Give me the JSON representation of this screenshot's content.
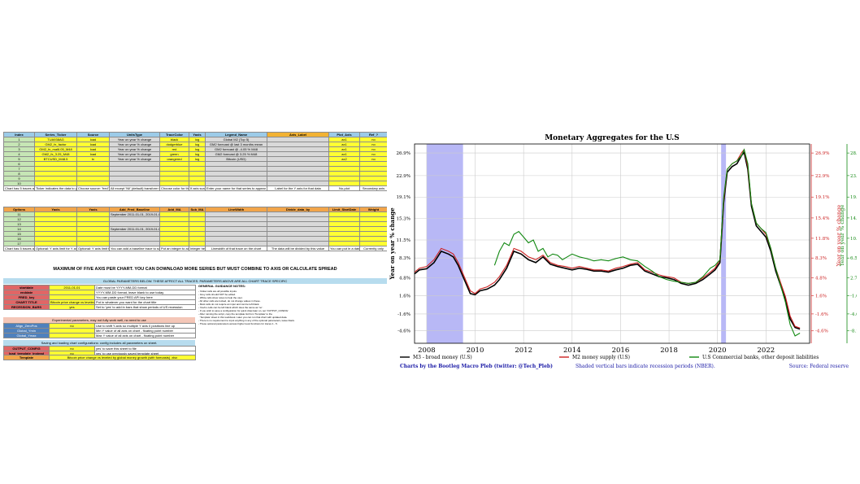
{
  "sheet": {
    "headers": [
      "Index",
      "Series_Ticker",
      "Source",
      "UnitsType",
      "TraceColor",
      "Yaxis",
      "Legend_Name",
      "Axis_Label",
      "Plot_Axis",
      "Ref_?"
    ],
    "rows": [
      [
        "1",
        "TUA938AG",
        "load",
        "Year on year % change",
        "black",
        "log",
        "Global M2 (Top 5)",
        "",
        "ax1",
        "no"
      ],
      [
        "2",
        "GM2_fx_factor",
        "load",
        "Year on year % change",
        "dodgerblue",
        "log",
        "GM2 forecast @ last 3 months mean",
        "",
        "ax1",
        "no"
      ],
      [
        "3",
        "GM2_fx_mal6.05_M48",
        "load",
        "Year on year % change",
        "red",
        "log",
        "GM2 forecast @ -4.05 % M48",
        "",
        "ax1",
        "no"
      ],
      [
        "4",
        "GM2_fx_3.25_M48",
        "load",
        "Year on year % change",
        "green",
        "log",
        "GM2 forecast @ 3.25 % M48",
        "",
        "ax1",
        "no"
      ],
      [
        "5",
        "BTCUSD_M48.5",
        "tv",
        "Year on year % change",
        "orangered",
        "log",
        "Bitcoin (USD)",
        "",
        "ax2",
        "no"
      ],
      [
        "6",
        "",
        "",
        "",
        "",
        "",
        "",
        "",
        "",
        ""
      ],
      [
        "7",
        "",
        "",
        "",
        "",
        "",
        "",
        "",
        "",
        ""
      ],
      [
        "8",
        "",
        "",
        "",
        "",
        "",
        "",
        "",
        "",
        ""
      ],
      [
        "9",
        "",
        "",
        "",
        "",
        "",
        "",
        "",
        "",
        ""
      ],
      [
        "10",
        "",
        "",
        "",
        "",
        "",
        "",
        "",
        "",
        ""
      ]
    ],
    "notes_row": [
      "Chart has 5 traces as a max (index 1-10)",
      "Ticker indicates the data to pull from the source",
      "Choose source: 'fred' 'load' 'tv'",
      "All except 'Nil' (default) transform the data in some way",
      "Choose color for the trace on the chart",
      "If axis scaling",
      "Enter your name for that series to appear on the legend",
      "Label for the Y axis for that data",
      "No-plot",
      "Secondary axis"
    ],
    "headers2": [
      "Options",
      "Yaxis",
      "Yaxis",
      "Add_Fred_Baseline",
      "Add_MA",
      "Sub_MA",
      "LineWidth",
      "Divide_data_by",
      "Limit_StartDate",
      "Weight"
    ],
    "rows2": [
      [
        "11",
        "",
        "",
        "September 2011-01-01, 2019-01-01",
        "",
        "",
        "",
        "",
        "",
        ""
      ],
      [
        "12",
        "",
        "",
        "",
        "",
        "",
        "",
        "",
        "",
        ""
      ],
      [
        "13",
        "",
        "",
        "",
        "",
        "",
        "",
        "",
        "",
        ""
      ],
      [
        "14",
        "",
        "",
        "September 2011-01-01, 2019-01-01",
        "",
        "",
        "",
        "",
        "",
        ""
      ],
      [
        "15",
        "",
        "",
        "",
        "",
        "",
        "",
        "",
        "",
        ""
      ],
      [
        "16",
        "",
        "",
        "",
        "",
        "",
        "",
        "",
        "",
        ""
      ],
      [
        "17",
        "",
        "",
        "",
        "",
        "",
        "",
        "",
        "",
        ""
      ]
    ],
    "notes_row2": [
      "Chart has 5 traces as a maximum (index 1-10)",
      "Optional: Y axis limit for Y axis",
      "Optional: Y axis limit for Y axis",
      "You can add a baseline trace to some traces",
      "Put an integer to add a moving average",
      "Integer here for subtraction",
      "Linewidth of that trace on the chart",
      "The data will be divided by this value",
      "You can put in a date in this format",
      "Currently only"
    ],
    "banner": "MAXIMUM OF FIVE AXIS PER CHART. YOU CAN DOWNLOAD MORE SERIES BUT MUST COMBINE TO AXIS OR CALCULATE SPREAD",
    "global_bar": "GLOBAL PARAMETERS BELOW. THESE AFFECT ALL TRACES. PARAMETERS ABOVE ARE ALL CHART TRACE SPECIFIC",
    "global_params": [
      [
        "startdate",
        "2011-01-01",
        "Date must be YYYY-MM-DD format"
      ],
      [
        "enddate",
        "",
        "YYYY-MM-DD format, leave blank to use today"
      ],
      [
        "FRED_key",
        "",
        "You can paste your FRED API key here"
      ],
      [
        "CHART TITLE",
        "Bitcoin price change vs leveled by global money growth",
        "Put in whatever you want for the chart title"
      ],
      [
        "RECESSION_BARS",
        "yes",
        "Set to 'yes' to add in bars that show periods of US recession"
      ]
    ],
    "guidance_title": "GENERAL GUIDANCE NOTES:",
    "guidance": "- Yellow cells are all possible inputs.\n- Grey cells should NOT be edited.\n- White cells show notes to help the user.\n- All other cells are locked, do not change values in these.\n- Most cells do not require an input and can be left blank.\n- Yes/no cells can be left blank which does the same as 'no'.\n- If you wish to save a configuration for quick draw later on, set 'OUTPUT_CONFIG'\n- After running the script, copy the template list from 'Template' to the\n  'Template' sheet in this workbook. Later you can run that chart with updated data.\n- There is no requirement to input anything in any of the optional parameters, leave blank.\n- These optional parameters access higher level functions for traces 1 - 5.",
    "exp_bar": "Experimental parameters, may not fully work well, no need to use",
    "exp_params": [
      [
        "Align_ZeroPos",
        "no",
        "Use to shift Y-axis so multiple Y axis 0 positions line up"
      ],
      [
        "Global_Ymin",
        "",
        "Min Y value of all axis on chart - floating point number"
      ],
      [
        "Global_Ymax",
        "",
        "Max Y value of all axis on chart - floating point number"
      ]
    ],
    "save_bar": "Saving and loading chart configurations: config includes all parameters on sheet.",
    "save_params": [
      [
        "OUTPUT_CONFIG",
        "no",
        "yes' to save this sheet to file"
      ],
      [
        "load_template_instead",
        "no",
        "yes' to use previously saved template sheet"
      ]
    ],
    "template_label": "Template",
    "template_value": "Bitcoin price change vs leveled by global money growth (with forecasts) .xlsx"
  },
  "chart_data": {
    "type": "line",
    "title": "Monetary Aggregates for the U.S",
    "ylabel": "Year on year % change",
    "right_ylabels": [
      "Year on year % change",
      "Year on year % change"
    ],
    "xlim": [
      2007.5,
      2023.8
    ],
    "x_ticks": [
      2008,
      2010,
      2012,
      2014,
      2016,
      2018,
      2020,
      2022
    ],
    "ylim": [
      -6.8,
      28.5
    ],
    "y_ticks": [
      "26.9%",
      "22.9%",
      "19.1%",
      "15.3%",
      "11.5%",
      "8.3%",
      "4.8%",
      "1.6%",
      "-1.6%",
      "-4.6%"
    ],
    "y_tick_values": [
      26.9,
      22.9,
      19.1,
      15.3,
      11.5,
      8.3,
      4.8,
      1.6,
      -1.6,
      -4.6
    ],
    "right1_ticks": [
      "26.9%",
      "22.9%",
      "19.1%",
      "15.4%",
      "11.8%",
      "8.3%",
      "4.8%",
      "1.6%",
      "-1.6%",
      "-4.6%"
    ],
    "right1_tick_values": [
      26.9,
      22.9,
      19.1,
      15.4,
      11.8,
      8.3,
      4.8,
      1.6,
      -1.6,
      -4.6
    ],
    "right2_ticks": [
      "28.9%",
      "23.4%",
      "19.0%",
      "14.7%",
      "10.5%",
      "6.5%",
      "2.7%",
      "-1.0%",
      "-4.6%",
      "-8.1%"
    ],
    "right2_tick_values": [
      26.9,
      22.9,
      19.1,
      15.4,
      11.8,
      8.3,
      4.8,
      1.6,
      -1.6,
      -4.6
    ],
    "grid": true,
    "recessions": [
      [
        2008.0,
        2009.5
      ],
      [
        2020.15,
        2020.35
      ]
    ],
    "series": [
      {
        "name": "M3 - broad money (U.S)",
        "color": "#000000",
        "x": [
          2007.5,
          2007.7,
          2008.0,
          2008.3,
          2008.6,
          2008.9,
          2009.1,
          2009.3,
          2009.5,
          2009.8,
          2010.0,
          2010.2,
          2010.5,
          2010.8,
          2011.0,
          2011.3,
          2011.6,
          2011.9,
          2012.2,
          2012.5,
          2012.8,
          2013.1,
          2013.4,
          2013.7,
          2014.0,
          2014.3,
          2014.6,
          2014.9,
          2015.2,
          2015.5,
          2015.8,
          2016.1,
          2016.4,
          2016.7,
          2017.0,
          2017.3,
          2017.6,
          2017.9,
          2018.2,
          2018.5,
          2018.8,
          2019.1,
          2019.4,
          2019.7,
          2019.9,
          2020.1,
          2020.25,
          2020.4,
          2020.6,
          2020.8,
          2021.0,
          2021.1,
          2021.25,
          2021.4,
          2021.6,
          2021.8,
          2022.0,
          2022.2,
          2022.4,
          2022.6,
          2022.8,
          2023.0,
          2023.2,
          2023.4
        ],
        "y": [
          5.5,
          6.2,
          6.4,
          7.5,
          9.5,
          9.0,
          8.5,
          7.0,
          5.0,
          2.0,
          1.8,
          2.5,
          2.8,
          3.5,
          4.5,
          6.5,
          9.5,
          9.0,
          8.0,
          7.5,
          8.5,
          7.2,
          6.8,
          6.5,
          6.2,
          6.5,
          6.3,
          6.0,
          6.0,
          5.8,
          6.2,
          6.5,
          7.0,
          7.2,
          6.0,
          5.5,
          5.0,
          4.8,
          4.5,
          3.8,
          3.5,
          3.8,
          4.5,
          5.5,
          6.2,
          7.5,
          18.0,
          23.5,
          24.5,
          25.0,
          26.5,
          27.0,
          24.0,
          17.5,
          14.0,
          13.0,
          12.0,
          9.5,
          6.0,
          3.5,
          1.0,
          -2.5,
          -4.0,
          -4.3
        ]
      },
      {
        "name": "M2 money supply (U.S)",
        "color": "#cc2222",
        "x": [
          2007.5,
          2007.7,
          2008.0,
          2008.3,
          2008.6,
          2008.9,
          2009.1,
          2009.3,
          2009.5,
          2009.8,
          2010.0,
          2010.2,
          2010.5,
          2010.8,
          2011.0,
          2011.3,
          2011.6,
          2011.9,
          2012.2,
          2012.5,
          2012.8,
          2013.1,
          2013.4,
          2013.7,
          2014.0,
          2014.3,
          2014.6,
          2014.9,
          2015.2,
          2015.5,
          2015.8,
          2016.1,
          2016.4,
          2016.7,
          2017.0,
          2017.3,
          2017.6,
          2017.9,
          2018.2,
          2018.5,
          2018.8,
          2019.1,
          2019.4,
          2019.7,
          2019.9,
          2020.1,
          2020.25,
          2020.4,
          2020.6,
          2020.8,
          2021.0,
          2021.1,
          2021.25,
          2021.4,
          2021.6,
          2021.8,
          2022.0,
          2022.2,
          2022.4,
          2022.6,
          2022.8,
          2023.0,
          2023.2,
          2023.4
        ],
        "y": [
          5.8,
          6.5,
          6.8,
          8.0,
          10.0,
          9.5,
          9.0,
          7.5,
          5.5,
          2.5,
          2.0,
          2.8,
          3.2,
          4.0,
          5.0,
          7.0,
          10.0,
          9.5,
          8.5,
          8.0,
          8.8,
          7.5,
          7.0,
          6.8,
          6.5,
          6.8,
          6.5,
          6.2,
          6.2,
          6.0,
          6.5,
          6.8,
          7.2,
          7.5,
          6.2,
          5.8,
          5.3,
          5.0,
          4.8,
          4.0,
          3.8,
          4.0,
          4.8,
          5.8,
          6.5,
          8.0,
          18.5,
          24.0,
          25.0,
          25.5,
          27.0,
          27.5,
          24.5,
          18.0,
          14.5,
          13.5,
          12.5,
          10.0,
          6.5,
          4.0,
          1.5,
          -2.0,
          -3.8,
          -4.1
        ]
      },
      {
        "name": "U.S Commercial banks, other deposit liabilities",
        "color": "#118811",
        "x": [
          2010.8,
          2011.0,
          2011.2,
          2011.4,
          2011.6,
          2011.8,
          2012.0,
          2012.2,
          2012.4,
          2012.6,
          2012.8,
          2013.0,
          2013.2,
          2013.4,
          2013.6,
          2013.8,
          2014.0,
          2014.3,
          2014.6,
          2014.9,
          2015.2,
          2015.5,
          2015.8,
          2016.1,
          2016.4,
          2016.7,
          2017.0,
          2017.3,
          2017.6,
          2017.9,
          2018.2,
          2018.5,
          2018.8,
          2019.1,
          2019.4,
          2019.7,
          2019.9,
          2020.1,
          2020.25,
          2020.4,
          2020.6,
          2020.8,
          2021.0,
          2021.1,
          2021.25,
          2021.4,
          2021.6,
          2021.8,
          2022.0,
          2022.2,
          2022.4,
          2022.6,
          2022.8,
          2023.0,
          2023.2,
          2023.4
        ],
        "y": [
          7.0,
          9.5,
          11.0,
          10.5,
          12.5,
          13.0,
          12.0,
          11.0,
          11.5,
          9.5,
          10.0,
          8.5,
          9.0,
          8.8,
          8.0,
          8.5,
          9.0,
          8.5,
          8.2,
          7.8,
          8.0,
          7.8,
          8.2,
          8.5,
          8.0,
          7.8,
          6.8,
          6.0,
          5.0,
          4.5,
          4.2,
          4.0,
          3.8,
          4.0,
          5.0,
          6.5,
          7.0,
          8.0,
          19.0,
          24.0,
          25.0,
          25.5,
          26.5,
          27.5,
          25.0,
          18.0,
          14.5,
          13.5,
          12.8,
          10.0,
          6.5,
          3.5,
          0.5,
          -3.5,
          -5.5,
          -5.0
        ]
      }
    ],
    "footer_left": "Charts by the Bootleg Macro Pleb (twitter: @Tech_Pleb)",
    "footer_mid": "Shaded vertical bars indicate recession periods (NBER).",
    "footer_right": "Source: Federal reserve"
  }
}
